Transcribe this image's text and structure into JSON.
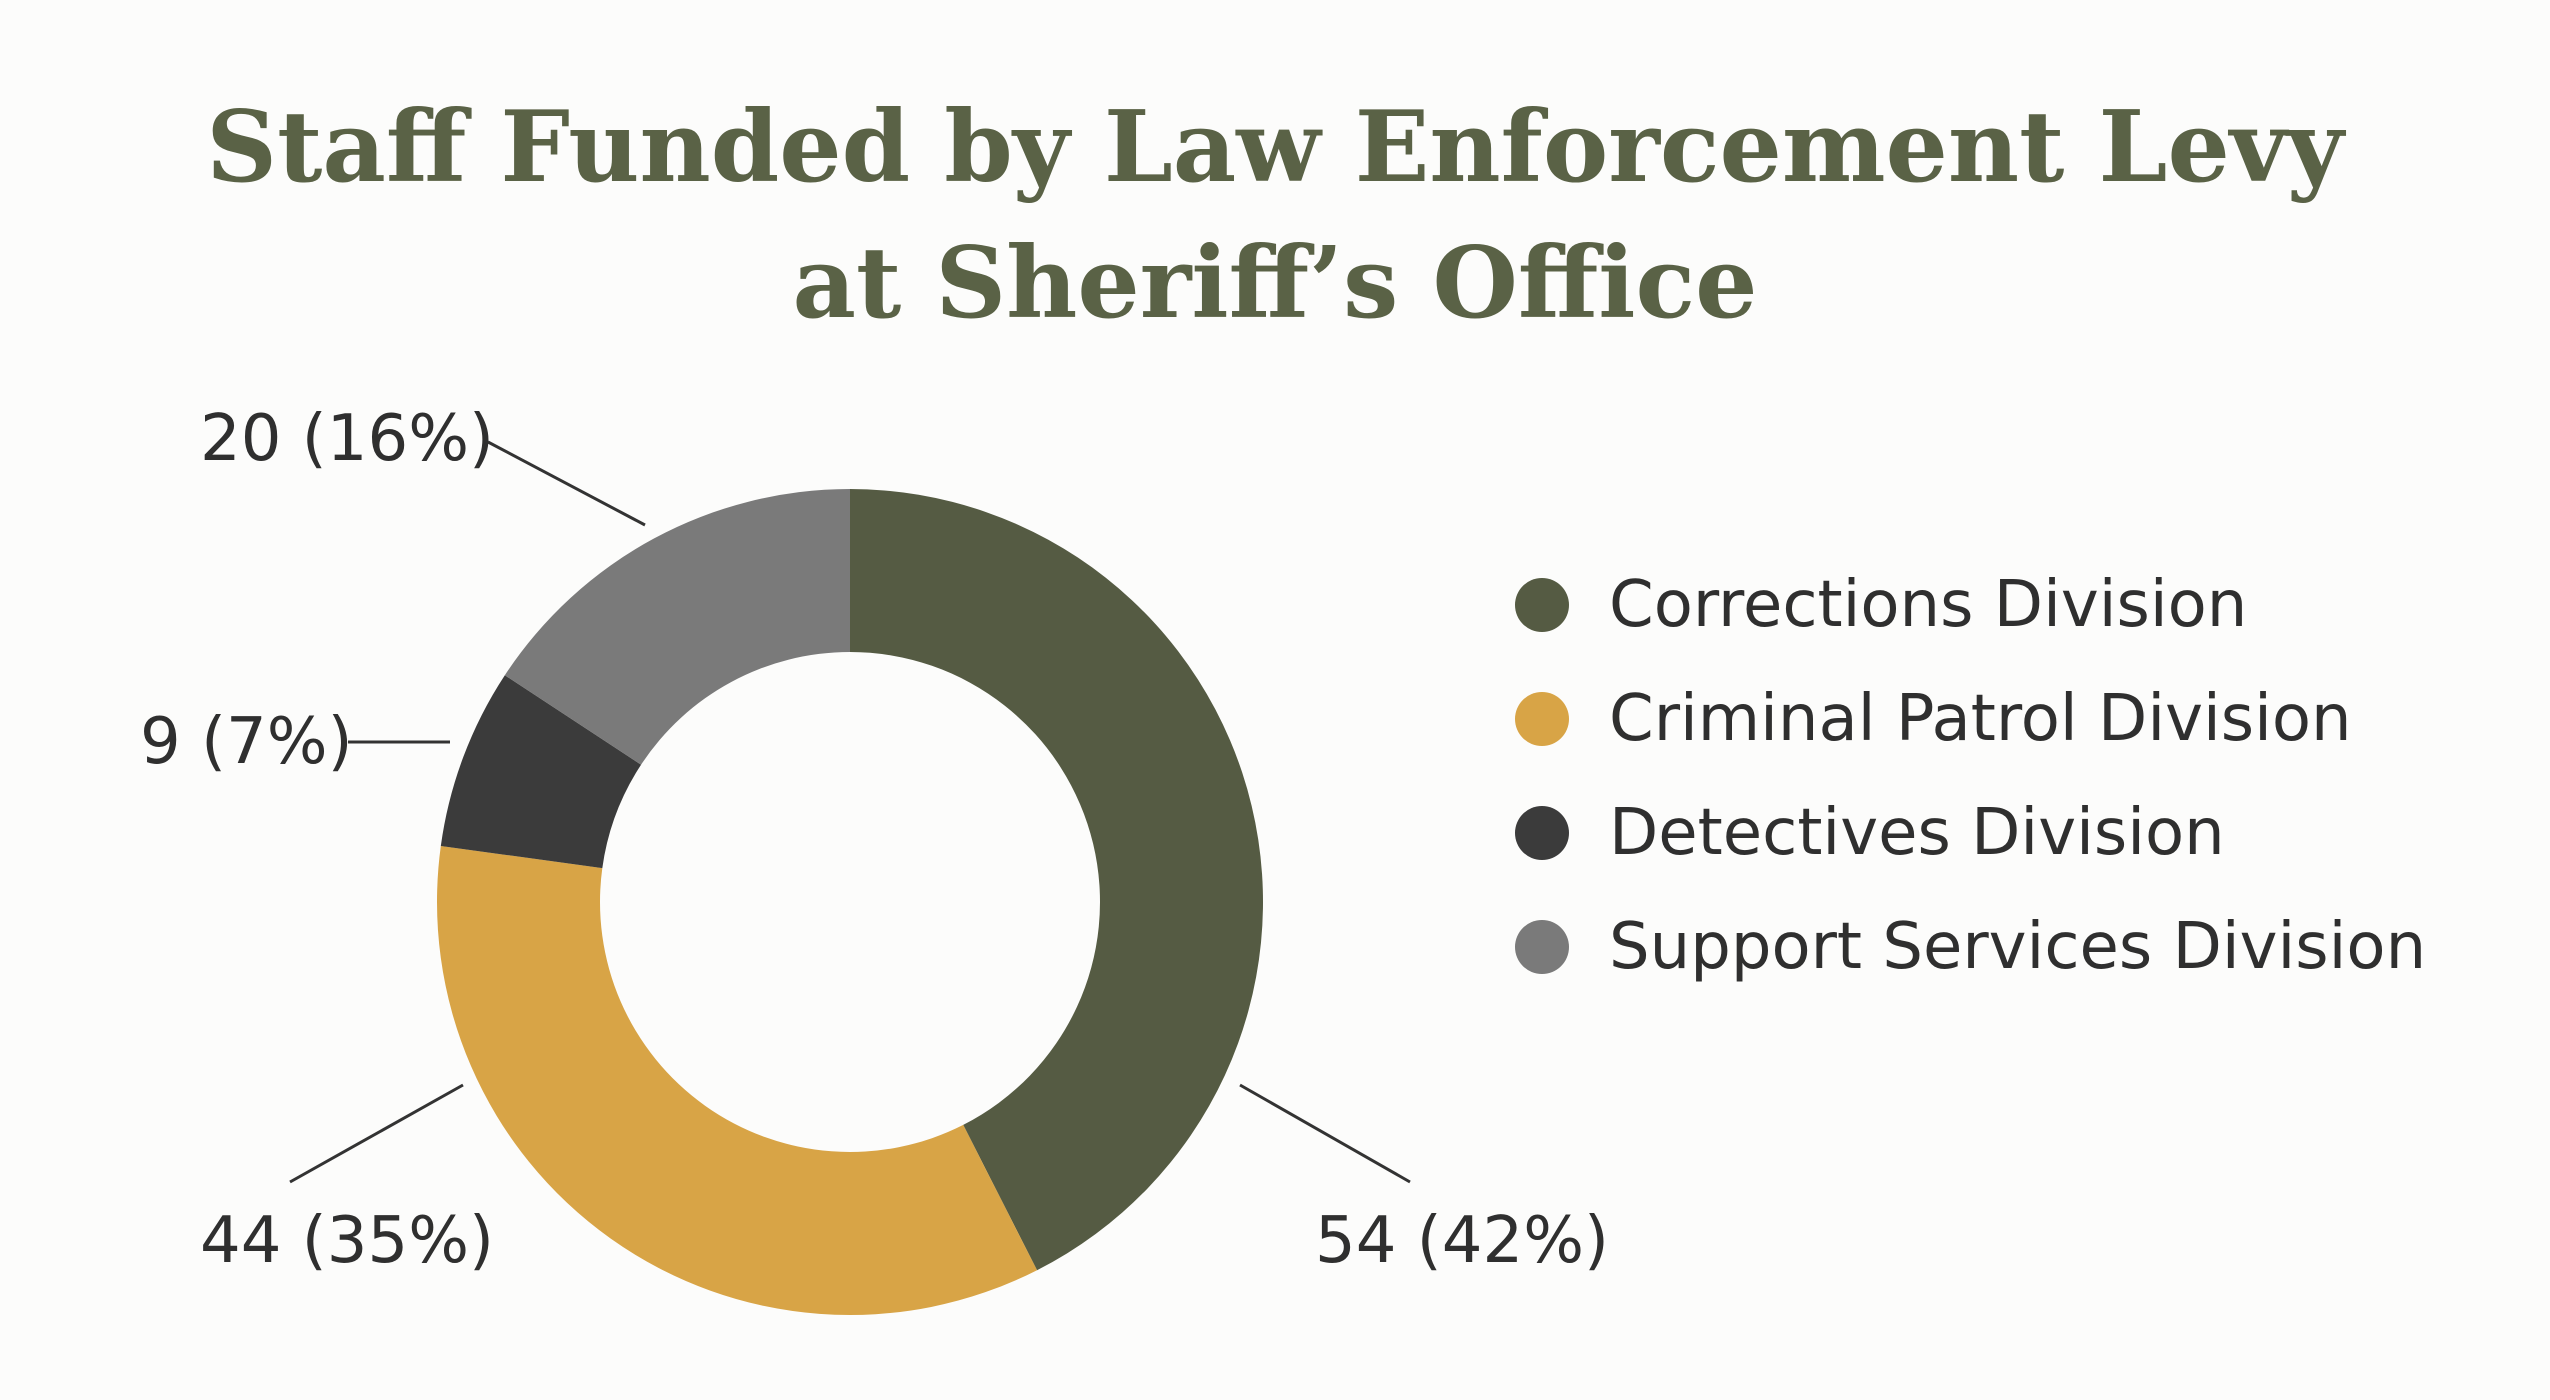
{
  "chart_data": {
    "type": "pie",
    "variant": "donut",
    "title": [
      "Staff Funded by Law Enforcement Levy",
      "at Sheriff’s Office"
    ],
    "slices": [
      {
        "name": "Corrections Division",
        "value": 54,
        "percent": 42,
        "label": "54 (42%)",
        "color": "#555b43"
      },
      {
        "name": "Criminal Patrol Division",
        "value": 44,
        "percent": 35,
        "label": "44 (35%)",
        "color": "#d8a446"
      },
      {
        "name": "Detectives Division",
        "value": 9,
        "percent": 7,
        "label": "9 (7%)",
        "color": "#3b3b3b"
      },
      {
        "name": "Support Services Division",
        "value": 20,
        "percent": 16,
        "label": "20 (16%)",
        "color": "#7a7a7a"
      }
    ],
    "start_angle": "top",
    "direction": "clockwise",
    "legend_position": "right"
  }
}
